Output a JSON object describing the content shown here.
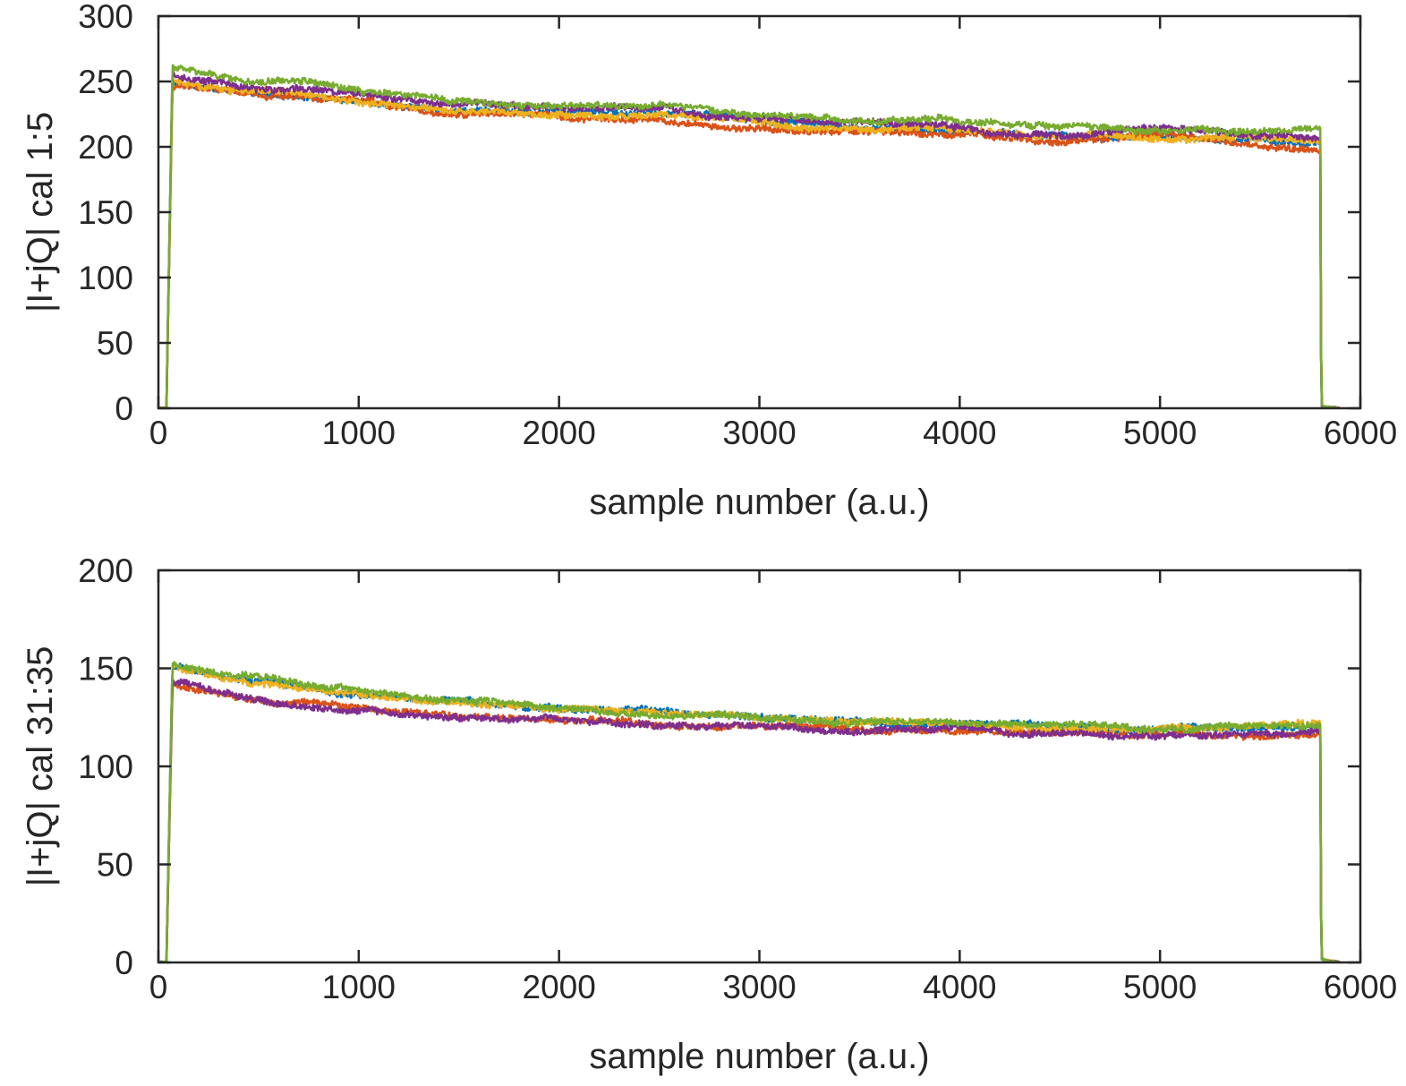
{
  "colors": [
    "#0072BD",
    "#D95319",
    "#EDB120",
    "#7E2F8E",
    "#77AC30"
  ],
  "chart_data": [
    {
      "type": "line",
      "xlabel": "sample number (a.u.)",
      "ylabel": "|I+jQ| cal 1:5",
      "xlim": [
        0,
        6000
      ],
      "ylim": [
        0,
        300
      ],
      "xticks": [
        0,
        1000,
        2000,
        3000,
        4000,
        5000,
        6000
      ],
      "yticks": [
        0,
        50,
        100,
        150,
        200,
        250,
        300
      ],
      "xtick_labels": [
        "0",
        "1000",
        "2000",
        "3000",
        "4000",
        "5000",
        "6000"
      ],
      "ytick_labels": [
        "0",
        "50",
        "100",
        "150",
        "200",
        "250",
        "300"
      ],
      "grid": false,
      "x": [
        0,
        40,
        70,
        250,
        500,
        750,
        1000,
        1500,
        2000,
        2500,
        3000,
        3500,
        4000,
        4500,
        5000,
        5500,
        5800,
        5805,
        5830,
        5900
      ],
      "series": [
        {
          "color": "#0072BD",
          "values": [
            0,
            0,
            250,
            246,
            242,
            240,
            236,
            228,
            226,
            224,
            219,
            214,
            212,
            208,
            204,
            206,
            203,
            2,
            1,
            0
          ]
        },
        {
          "color": "#D95319",
          "values": [
            0,
            0,
            247,
            243,
            239,
            237,
            234,
            225,
            222,
            218,
            214,
            211,
            209,
            204,
            208,
            201,
            196,
            2,
            1,
            0
          ]
        },
        {
          "color": "#EDB120",
          "values": [
            0,
            0,
            249,
            245,
            242,
            239,
            236,
            228,
            226,
            225,
            219,
            213,
            214,
            209,
            205,
            205,
            204,
            2,
            1,
            0
          ]
        },
        {
          "color": "#7E2F8E",
          "values": [
            0,
            0,
            256,
            251,
            246,
            244,
            240,
            231,
            230,
            227,
            222,
            219,
            215,
            210,
            215,
            209,
            205,
            2,
            1,
            0
          ]
        },
        {
          "color": "#77AC30",
          "values": [
            0,
            0,
            261,
            255,
            249,
            249,
            243,
            233,
            230,
            231,
            224,
            219,
            220,
            216,
            212,
            211,
            214,
            2,
            1,
            0
          ]
        }
      ]
    },
    {
      "type": "line",
      "xlabel": "sample number (a.u.)",
      "ylabel": "|I+jQ| cal 31:35",
      "xlim": [
        0,
        6000
      ],
      "ylim": [
        0,
        200
      ],
      "xticks": [
        0,
        1000,
        2000,
        3000,
        4000,
        5000,
        6000
      ],
      "yticks": [
        0,
        50,
        100,
        150,
        200
      ],
      "xtick_labels": [
        "0",
        "1000",
        "2000",
        "3000",
        "4000",
        "5000",
        "6000"
      ],
      "ytick_labels": [
        "0",
        "50",
        "100",
        "150",
        "200"
      ],
      "grid": false,
      "x": [
        0,
        40,
        70,
        250,
        500,
        750,
        1000,
        1500,
        2000,
        2500,
        3000,
        3500,
        4000,
        4500,
        5000,
        5500,
        5800,
        5805,
        5830,
        5900
      ],
      "series": [
        {
          "color": "#0072BD",
          "values": [
            0,
            0,
            151,
            147,
            143,
            140,
            137,
            133,
            130,
            128,
            125,
            123,
            122,
            121,
            120,
            120,
            121,
            2,
            1,
            0
          ]
        },
        {
          "color": "#D95319",
          "values": [
            0,
            0,
            142,
            138,
            135,
            132,
            129,
            126,
            124,
            122,
            120,
            118,
            118,
            117,
            116,
            116,
            116,
            2,
            1,
            0
          ]
        },
        {
          "color": "#EDB120",
          "values": [
            0,
            0,
            151,
            147,
            143,
            140,
            137,
            133,
            130,
            128,
            125,
            123,
            122,
            121,
            120,
            120,
            121,
            2,
            1,
            0
          ]
        },
        {
          "color": "#7E2F8E",
          "values": [
            0,
            0,
            143,
            139,
            135,
            132,
            129,
            126,
            124,
            122,
            120,
            118,
            118,
            117,
            116,
            116,
            117,
            2,
            1,
            0
          ]
        },
        {
          "color": "#77AC30",
          "values": [
            0,
            0,
            152,
            148,
            144,
            141,
            138,
            134,
            130,
            128,
            125,
            123,
            122,
            121,
            120,
            120,
            121,
            2,
            1,
            0
          ]
        }
      ]
    }
  ]
}
